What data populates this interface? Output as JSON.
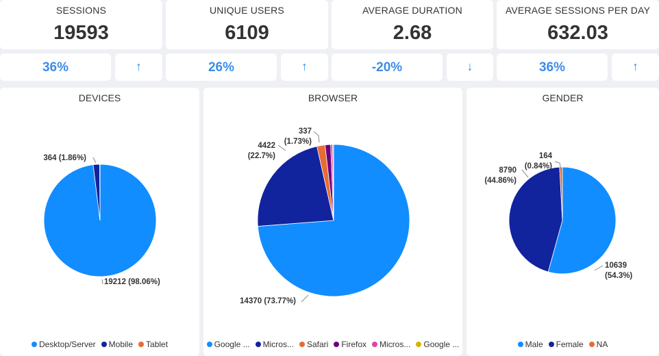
{
  "kpis": [
    {
      "label": "SESSIONS",
      "value": "19593",
      "change": "36%",
      "arrow": "↑"
    },
    {
      "label": "UNIQUE USERS",
      "value": "6109",
      "change": "26%",
      "arrow": "↑"
    },
    {
      "label": "AVERAGE DURATION",
      "value": "2.68",
      "change": "-20%",
      "arrow": "↓"
    },
    {
      "label": "AVERAGE SESSIONS PER DAY",
      "value": "632.03",
      "change": "36%",
      "arrow": "↑"
    }
  ],
  "chart_data": [
    {
      "type": "pie",
      "title": "DEVICES",
      "categories": [
        "Desktop/Server",
        "Mobile",
        "Tablet"
      ],
      "values": [
        19212,
        364,
        17
      ],
      "colors": [
        "#118dff",
        "#12239e",
        "#e66c37"
      ],
      "data_labels": [
        "19212 (98.06%)",
        "364 (1.86%)",
        ""
      ],
      "legend_position": "bottom"
    },
    {
      "type": "pie",
      "title": "BROWSER",
      "categories": [
        "Google ...",
        "Micros...",
        "Safari",
        "Firefox",
        "Micros...",
        "Google ..."
      ],
      "values": [
        14370,
        4422,
        337,
        230,
        80,
        40
      ],
      "colors": [
        "#118dff",
        "#12239e",
        "#e66c37",
        "#6b007b",
        "#e044a7",
        "#d9b300"
      ],
      "data_labels": [
        "14370 (73.77%)",
        "4422 (22.7%)",
        "337 (1.73%)",
        "",
        "",
        ""
      ],
      "legend_position": "bottom"
    },
    {
      "type": "pie",
      "title": "GENDER",
      "categories": [
        "Male",
        "Female",
        "NA"
      ],
      "values": [
        10639,
        8790,
        164
      ],
      "colors": [
        "#118dff",
        "#12239e",
        "#e66c37"
      ],
      "data_labels": [
        "10639 (54.3%)",
        "8790 (44.86%)",
        "164 (0.84%)"
      ],
      "legend_position": "bottom"
    }
  ]
}
